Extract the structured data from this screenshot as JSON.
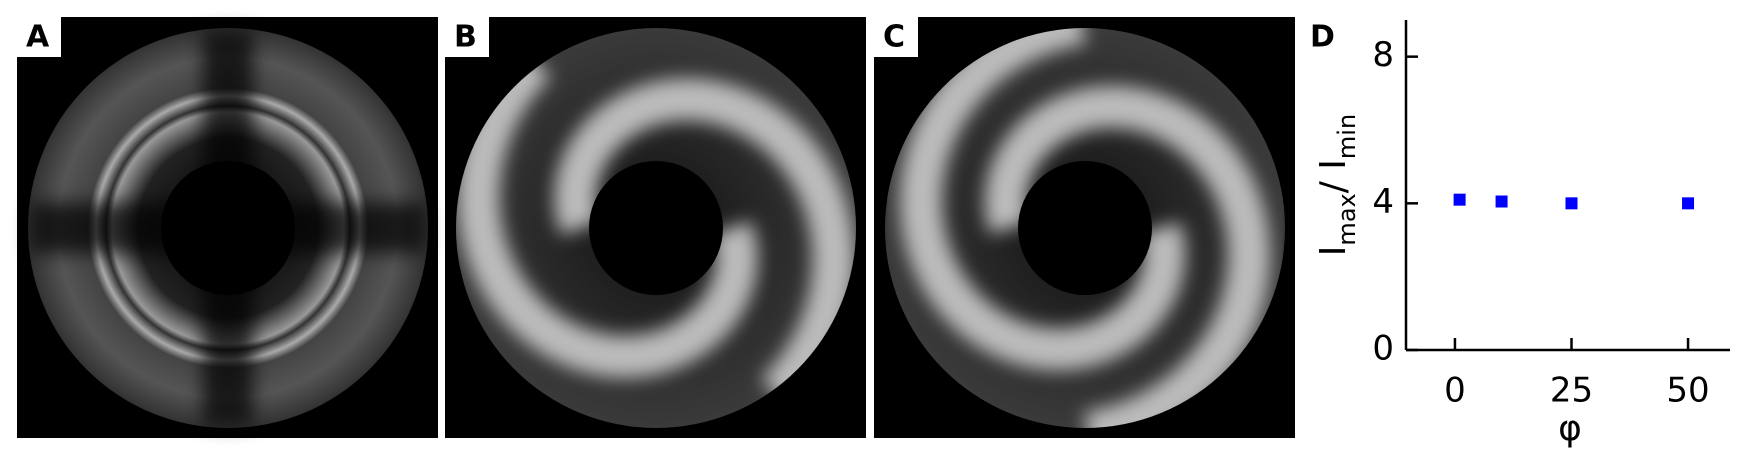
{
  "panels": [
    {
      "label": "A"
    },
    {
      "label": "B"
    },
    {
      "label": "C"
    }
  ],
  "chart_data": {
    "type": "scatter",
    "label": "D",
    "x": [
      1,
      10,
      25,
      50
    ],
    "values": [
      4.1,
      4.05,
      4.0,
      4.0
    ],
    "color": "#0000ff",
    "xlim": [
      -10.5,
      59
    ],
    "ylim": [
      0,
      9
    ],
    "xticks": [
      0,
      25,
      50
    ],
    "yticks": [
      0,
      4,
      8
    ],
    "xlabel": "φ",
    "ylabel": [
      "I",
      "max",
      "/ I",
      "min"
    ]
  }
}
